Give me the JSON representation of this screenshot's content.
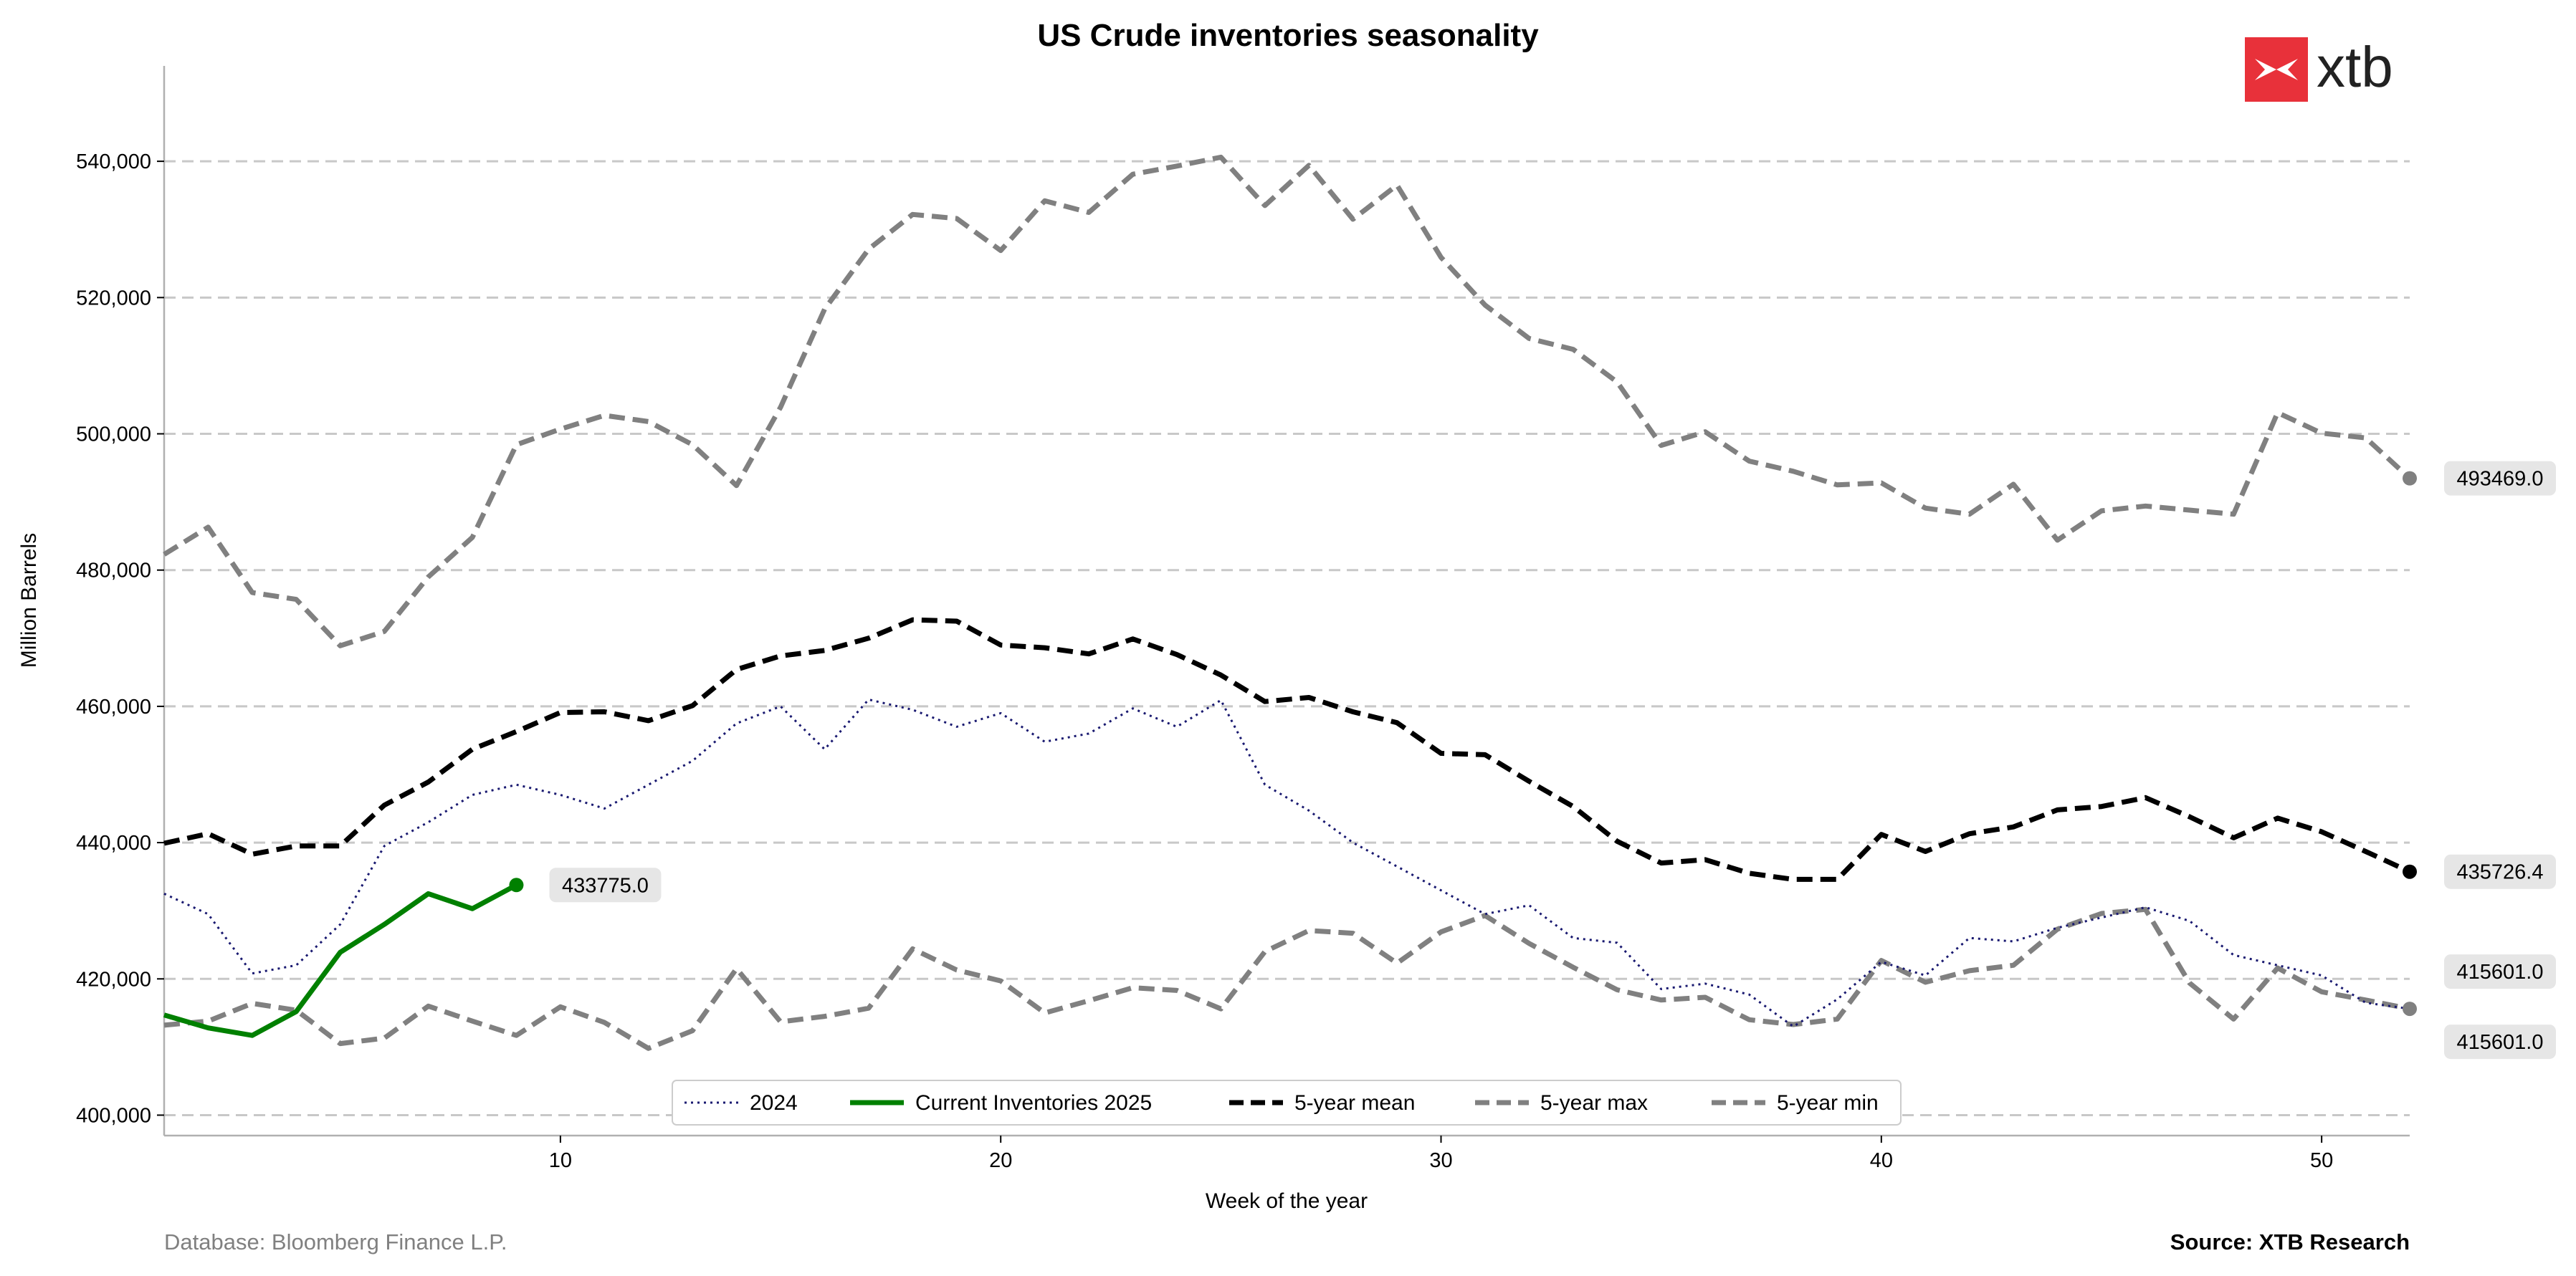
{
  "chart_data": {
    "type": "line",
    "title": "US Crude inventories seasonality",
    "xlabel": "Week of the year",
    "ylabel": "Million Barrels",
    "xlim": [
      1,
      52
    ],
    "ylim": [
      397000,
      554000
    ],
    "x_ticks": [
      10,
      20,
      30,
      40,
      50
    ],
    "y_ticks": [
      400000,
      420000,
      440000,
      460000,
      480000,
      500000,
      520000,
      540000
    ],
    "y_tick_labels": [
      "400,000",
      "420,000",
      "440,000",
      "460,000",
      "480,000",
      "500,000",
      "520,000",
      "540,000"
    ],
    "grid": "horizontal dashed",
    "legend_placement": "bottom-center",
    "series": [
      {
        "name": "2024",
        "color": "#191970",
        "style": "dotted",
        "x": [
          1,
          2,
          3,
          4,
          5,
          6,
          7,
          8,
          9,
          10,
          11,
          12,
          13,
          14,
          15,
          16,
          17,
          18,
          19,
          20,
          21,
          22,
          23,
          24,
          25,
          26,
          27,
          28,
          29,
          30,
          31,
          32,
          33,
          34,
          35,
          36,
          37,
          38,
          39,
          40,
          41,
          42,
          43,
          44,
          45,
          46,
          47,
          48,
          49,
          50,
          51,
          52
        ],
        "values": [
          432500,
          429500,
          420800,
          422000,
          428000,
          439500,
          443000,
          447000,
          448500,
          447000,
          445000,
          448500,
          452000,
          457500,
          460000,
          453700,
          461000,
          459500,
          457000,
          459000,
          454800,
          456000,
          459700,
          457000,
          460900,
          448500,
          444700,
          440000,
          436500,
          433000,
          429500,
          430800,
          426000,
          425300,
          418500,
          419300,
          417700,
          413000,
          417000,
          422500,
          420500,
          426000,
          425500,
          427500,
          429000,
          430500,
          428500,
          423500,
          422000,
          420500,
          416500,
          415601
        ]
      },
      {
        "name": "Current Inventories 2025",
        "color": "#008000",
        "style": "solid",
        "x": [
          1,
          2,
          3,
          4,
          5,
          6,
          7,
          8,
          9
        ],
        "values": [
          414700,
          412800,
          411700,
          415200,
          423900,
          428000,
          432500,
          430300,
          433775
        ],
        "end_label": "433775.0"
      },
      {
        "name": "5-year mean",
        "color": "#000000",
        "style": "dashed",
        "x": [
          1,
          2,
          3,
          4,
          5,
          6,
          7,
          8,
          9,
          10,
          11,
          12,
          13,
          14,
          15,
          16,
          17,
          18,
          19,
          20,
          21,
          22,
          23,
          24,
          25,
          26,
          27,
          28,
          29,
          30,
          31,
          32,
          33,
          34,
          35,
          36,
          37,
          38,
          39,
          40,
          41,
          42,
          43,
          44,
          45,
          46,
          47,
          48,
          49,
          50,
          51,
          52
        ],
        "values": [
          439900,
          441300,
          438300,
          439500,
          439500,
          445500,
          448900,
          453700,
          456300,
          459100,
          459200,
          457900,
          460100,
          465400,
          467400,
          468200,
          470000,
          472700,
          472500,
          469000,
          468600,
          467700,
          469900,
          467600,
          464600,
          460700,
          461300,
          459200,
          457600,
          453100,
          452900,
          449000,
          445300,
          440200,
          437000,
          437500,
          435500,
          434600,
          434600,
          441200,
          438700,
          441300,
          442300,
          444800,
          445300,
          446600,
          443800,
          440700,
          443600,
          441600,
          438700,
          435726.4
        ],
        "end_label": "435726.4"
      },
      {
        "name": "5-year max",
        "color": "#808080",
        "style": "dashed",
        "x": [
          1,
          2,
          3,
          4,
          5,
          6,
          7,
          8,
          9,
          10,
          11,
          12,
          13,
          14,
          15,
          16,
          17,
          18,
          19,
          20,
          21,
          22,
          23,
          24,
          25,
          26,
          27,
          28,
          29,
          30,
          31,
          32,
          33,
          34,
          35,
          36,
          37,
          38,
          39,
          40,
          41,
          42,
          43,
          44,
          45,
          46,
          47,
          48,
          49,
          50,
          51,
          52
        ],
        "values": [
          482300,
          486300,
          476700,
          475700,
          468900,
          471000,
          479000,
          484800,
          498400,
          500700,
          502700,
          501800,
          498400,
          492400,
          503900,
          518300,
          527100,
          532200,
          531600,
          526900,
          534200,
          532500,
          538100,
          539300,
          540600,
          533500,
          539400,
          531500,
          536500,
          525900,
          518900,
          514000,
          512400,
          507600,
          498300,
          500300,
          496000,
          494500,
          492500,
          492800,
          489100,
          488200,
          492600,
          484400,
          488700,
          489400,
          488800,
          488200,
          503100,
          500100,
          499400,
          493469
        ],
        "end_label": "493469.0"
      },
      {
        "name": "5-year min",
        "color": "#808080",
        "style": "dashed",
        "x": [
          1,
          2,
          3,
          4,
          5,
          6,
          7,
          8,
          9,
          10,
          11,
          12,
          13,
          14,
          15,
          16,
          17,
          18,
          19,
          20,
          21,
          22,
          23,
          24,
          25,
          26,
          27,
          28,
          29,
          30,
          31,
          32,
          33,
          34,
          35,
          36,
          37,
          38,
          39,
          40,
          41,
          42,
          43,
          44,
          45,
          46,
          47,
          48,
          49,
          50,
          51,
          52
        ],
        "values": [
          413200,
          413800,
          416400,
          415400,
          410500,
          411300,
          416000,
          413800,
          411700,
          415900,
          413600,
          409800,
          412400,
          421500,
          413700,
          414500,
          415700,
          424400,
          421300,
          419700,
          415000,
          416800,
          418700,
          418300,
          415600,
          424000,
          427100,
          426700,
          422300,
          426900,
          429300,
          425200,
          421700,
          418400,
          416900,
          417300,
          414000,
          413300,
          414100,
          422700,
          419500,
          421200,
          422000,
          427300,
          429600,
          430200,
          419400,
          414100,
          421600,
          418100,
          416900,
          415601
        ],
        "end_labels": [
          "415601.0",
          "415601.0"
        ]
      }
    ],
    "source": "Database: Bloomberg Finance L.P.",
    "credit": "Source: XTB Research",
    "brand": "xtb"
  }
}
